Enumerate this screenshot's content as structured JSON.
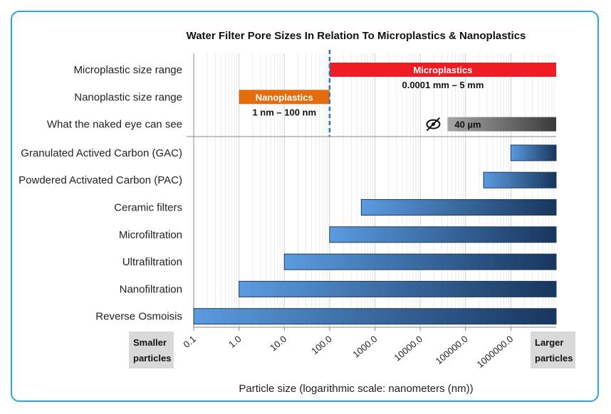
{
  "chart_data": {
    "type": "bar",
    "orientation": "horizontal",
    "scale": "log",
    "title": "Water Filter Pore Sizes In Relation To Microplastics & Nanoplastics",
    "xlabel": "Particle size (logarithmic scale: nanometers (nm))",
    "xlim": [
      0.1,
      10000000
    ],
    "tick_values": [
      0.1,
      1,
      10,
      100,
      1000,
      10000,
      100000,
      1000000
    ],
    "tick_labels": [
      "0.1",
      "1.0",
      "10.0",
      "100.0",
      "1000.0",
      "10000.0",
      "100000.0",
      "1000000.0"
    ],
    "divider_value": 100,
    "reference_rows": [
      {
        "label": "Microplastic size range",
        "start": 100,
        "end": 10000000,
        "color": "#ee1c25",
        "band_text": "Microplastics",
        "range_text": "0.0001 mm – 5 mm"
      },
      {
        "label": "Nanoplastic size range",
        "start": 1,
        "end": 100,
        "color": "#e46c0a",
        "band_text": "Nanoplastics",
        "range_text": "1 nm – 100 nm"
      },
      {
        "label": "What the naked eye can see",
        "start": 40000,
        "end": 10000000,
        "color": "#7f7f7f",
        "band_text": "40 µm",
        "icon": "eye-slash-icon"
      }
    ],
    "filter_rows": [
      {
        "label": "Granulated Actived Carbon (GAC)",
        "start": 1000000,
        "end": 10000000
      },
      {
        "label": "Powdered Activated Carbon (PAC)",
        "start": 250000,
        "end": 10000000
      },
      {
        "label": "Ceramic filters",
        "start": 500,
        "end": 10000000
      },
      {
        "label": "Microfiltration",
        "start": 100,
        "end": 10000000
      },
      {
        "label": "Ultrafiltration",
        "start": 10,
        "end": 10000000
      },
      {
        "label": "Nanofiltration",
        "start": 1,
        "end": 10000000
      },
      {
        "label": "Reverse Osmoisis",
        "start": 0.1,
        "end": 10000000
      }
    ],
    "left_note": [
      "Smaller",
      "particles"
    ],
    "right_note": [
      "Larger",
      "particles"
    ]
  }
}
